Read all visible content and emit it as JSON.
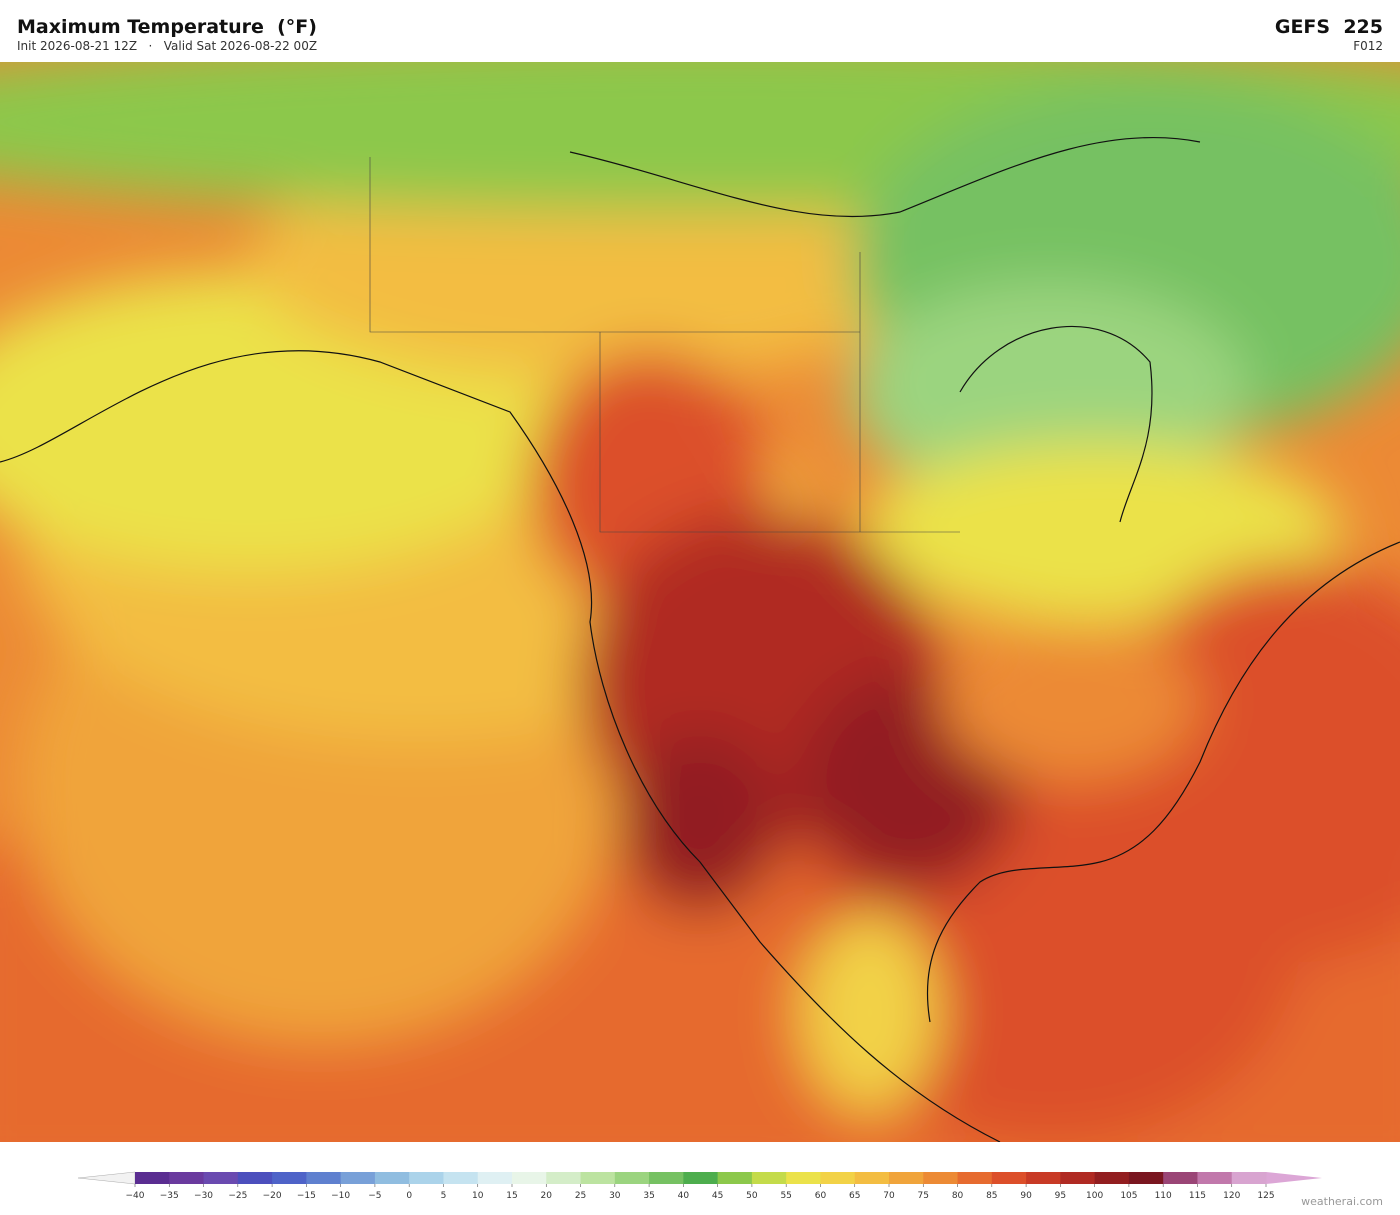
{
  "header": {
    "title": "Maximum Temperature  (°F)",
    "init": "Init 2026-08-21 12Z",
    "separator": "·",
    "valid": "Valid Sat 2026-08-22 00Z",
    "model": "GEFS  225",
    "forecast_hour": "F012"
  },
  "colorbar": {
    "range": [
      -40,
      125
    ],
    "ticks": [
      {
        "value": -40,
        "label": "−40"
      },
      {
        "value": -35,
        "label": "−35"
      },
      {
        "value": -30,
        "label": "−30"
      },
      {
        "value": -25,
        "label": "−25"
      },
      {
        "value": -20,
        "label": "−20"
      },
      {
        "value": -15,
        "label": "−15"
      },
      {
        "value": -10,
        "label": "−10"
      },
      {
        "value": -5,
        "label": "−5"
      },
      0,
      5,
      10,
      15,
      20,
      25,
      30,
      35,
      40,
      45,
      50,
      55,
      60,
      65,
      70,
      75,
      80,
      85,
      90,
      95,
      100,
      105,
      110,
      115,
      120,
      125
    ],
    "colors": [
      "#5a2d91",
      "#6a3a9e",
      "#6a4ab0",
      "#4c4fbd",
      "#4e63c8",
      "#5f80cf",
      "#78a0d8",
      "#90bde0",
      "#abd3ea",
      "#c5e3f0",
      "#dff0f3",
      "#e8f5e8",
      "#d4edc8",
      "#bce3a0",
      "#9bd47f",
      "#76c162",
      "#4dad4d",
      "#8cc84b",
      "#c4db4a",
      "#ebe24a",
      "#f2d247",
      "#f3bd42",
      "#f0a43b",
      "#ec8a35",
      "#e66b2f",
      "#dc4f2a",
      "#c83a26",
      "#b02a23",
      "#921e20",
      "#7a1620",
      "#9a4576",
      "#c178ab",
      "#d8a4d0"
    ],
    "under_color": "#f2f2f2",
    "over_color": "#dca6d6"
  },
  "watermark": "weatherai.com"
}
